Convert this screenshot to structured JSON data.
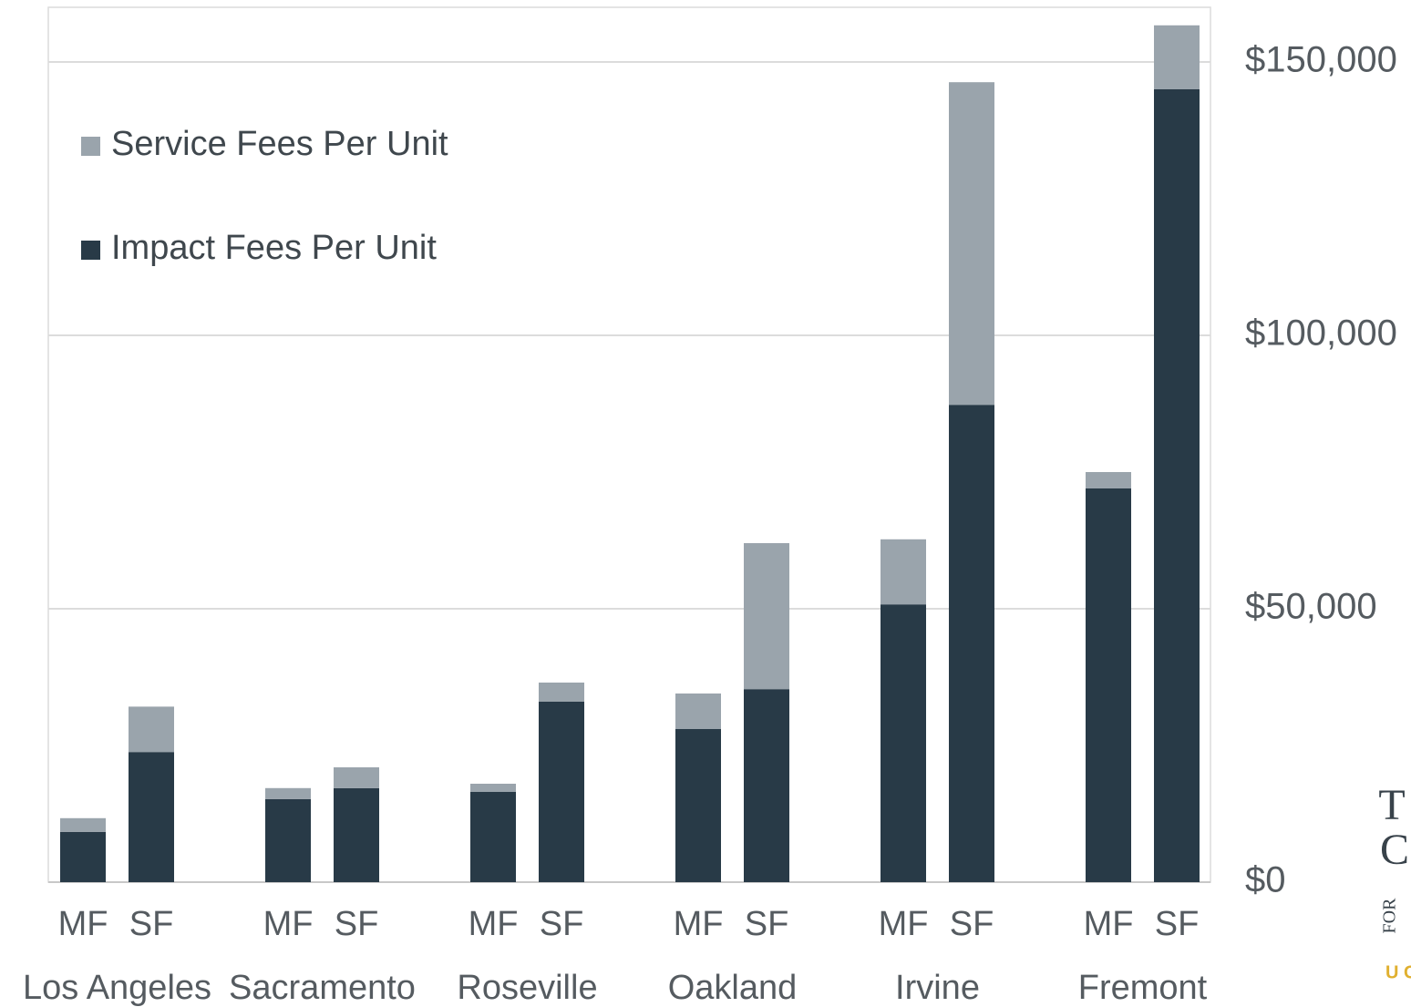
{
  "chart_data": {
    "type": "stacked_bar",
    "categories": [
      "MF",
      "SF",
      "MF",
      "SF",
      "MF",
      "SF",
      "MF",
      "SF",
      "MF",
      "SF",
      "MF",
      "SF"
    ],
    "groups": [
      "Los Angeles",
      "Sacramento",
      "Roseville",
      "Oakland",
      "Irvine",
      "Fremont"
    ],
    "series": [
      {
        "name": "Impact Fees Per Unit",
        "color": "#283a47",
        "values": [
          9200,
          23800,
          15200,
          17200,
          16500,
          33000,
          28000,
          35300,
          50800,
          87300,
          72000,
          145000
        ]
      },
      {
        "name": "Service Fees Per Unit",
        "color": "#9aa4ac",
        "values": [
          2500,
          8300,
          2000,
          3800,
          1500,
          3500,
          6500,
          26700,
          11900,
          59000,
          3000,
          11700
        ]
      }
    ],
    "ylim": [
      0,
      160000
    ],
    "yticks": [
      {
        "value": 0,
        "label": "$0"
      },
      {
        "value": 50000,
        "label": "$50,000"
      },
      {
        "value": 100000,
        "label": "$100,000"
      },
      {
        "value": 150000,
        "label": "$150,000"
      }
    ],
    "grid": true,
    "legend": "top-left",
    "logo": [
      "T",
      "C",
      "FOR",
      "U C"
    ]
  }
}
